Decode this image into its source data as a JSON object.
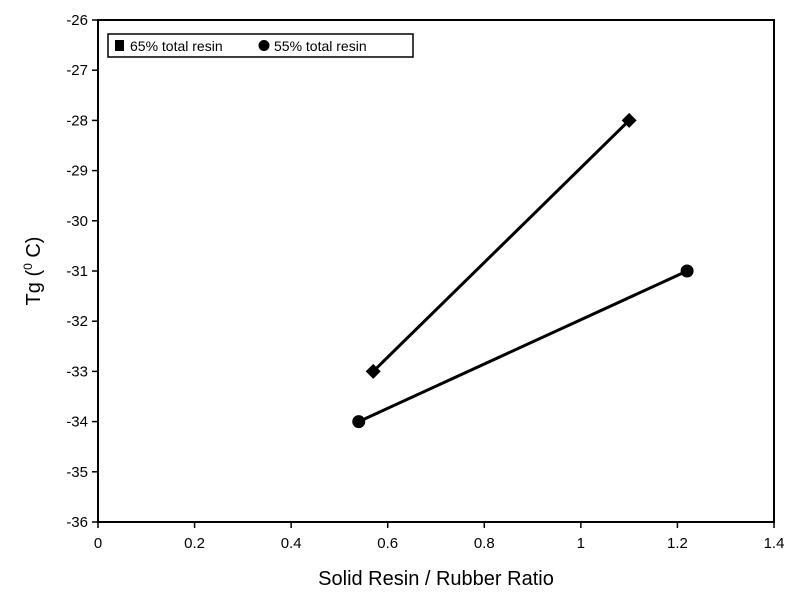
{
  "chart_data": {
    "type": "line",
    "title": "",
    "xlabel": "Solid Resin / Rubber Ratio",
    "ylabel": "Tg (",
    "ylabel_sup": "0",
    "ylabel_unit": " C)",
    "xlim": [
      0,
      1.4
    ],
    "ylim": [
      -36,
      -26
    ],
    "x_ticks": [
      0,
      0.2,
      0.4,
      0.6,
      0.8,
      1,
      1.2,
      1.4
    ],
    "x_tick_labels": [
      "0",
      "0.2",
      "0.4",
      "0.6",
      "0.8",
      "1",
      "1.2",
      "1.4"
    ],
    "y_ticks": [
      -26,
      -27,
      -28,
      -29,
      -30,
      -31,
      -32,
      -33,
      -34,
      -35,
      -36
    ],
    "y_tick_labels": [
      "-26",
      "-27",
      "-28",
      "-29",
      "-30",
      "-31",
      "-32",
      "-33",
      "-34",
      "-35",
      "-36"
    ],
    "grid": false,
    "legend_position": "top-left",
    "series": [
      {
        "name": "65% total resin",
        "marker": "diamond",
        "color": "#000000",
        "x": [
          0.57,
          1.1
        ],
        "y": [
          -33,
          -28
        ]
      },
      {
        "name": "55% total resin",
        "marker": "circle",
        "color": "#000000",
        "x": [
          0.54,
          1.22
        ],
        "y": [
          -34,
          -31
        ]
      }
    ]
  }
}
